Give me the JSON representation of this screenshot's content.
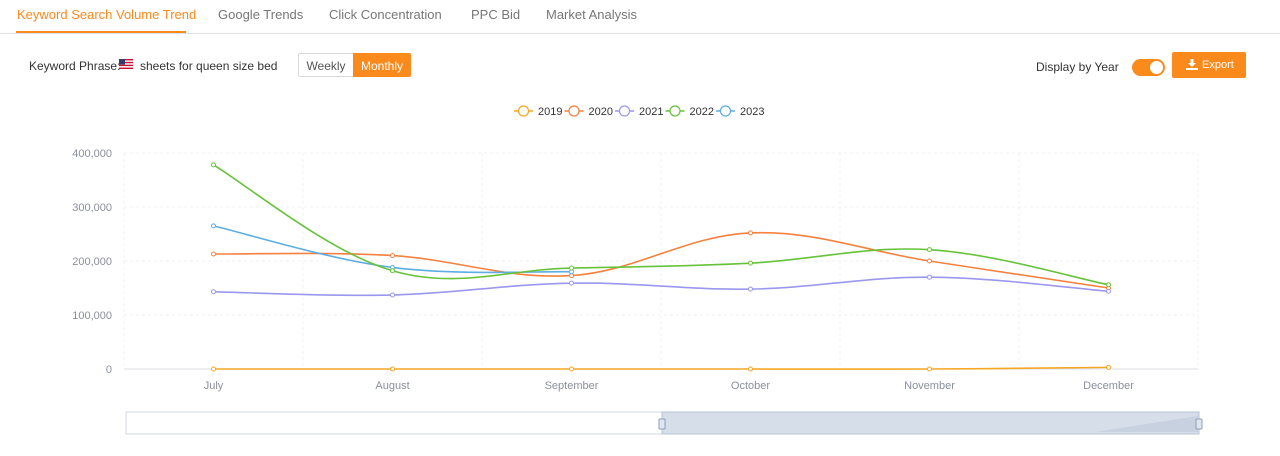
{
  "tabs": [
    {
      "label": "Keyword Search Volume Trend",
      "active": true
    },
    {
      "label": "Google Trends",
      "active": false
    },
    {
      "label": "Click Concentration",
      "active": false
    },
    {
      "label": "PPC Bid",
      "active": false
    },
    {
      "label": "Market Analysis",
      "active": false
    }
  ],
  "keyword": {
    "label": "Keyword Phrase:",
    "flag": "us-flag-icon",
    "value": "sheets for queen size bed"
  },
  "granularity": {
    "options": [
      "Weekly",
      "Monthly"
    ],
    "selected": "Monthly"
  },
  "display_by_year": {
    "label": "Display by Year",
    "enabled": true
  },
  "export": {
    "label": "Export",
    "icon": "download-icon"
  },
  "colors": {
    "accent": "#fb8a1d"
  },
  "chart_data": {
    "type": "line",
    "categories": [
      "July",
      "August",
      "September",
      "October",
      "November",
      "December"
    ],
    "ylim": [
      0,
      400000
    ],
    "yticks": [
      0,
      100000,
      200000,
      300000,
      400000
    ],
    "ytick_labels": [
      "0",
      "100,000",
      "200,000",
      "300,000",
      "400,000"
    ],
    "grid": true,
    "legend_position": "top-center",
    "series": [
      {
        "name": "2019",
        "color": "#f5a623",
        "values": [
          0,
          0,
          0,
          0,
          0,
          3000
        ]
      },
      {
        "name": "2020",
        "color": "#f5813f",
        "values": [
          213000,
          210000,
          173000,
          252000,
          200000,
          150000
        ]
      },
      {
        "name": "2021",
        "color": "#9b97ee",
        "values": [
          143000,
          137000,
          159000,
          148000,
          170000,
          144000
        ]
      },
      {
        "name": "2022",
        "color": "#67c23a",
        "values": [
          378000,
          182000,
          187000,
          196000,
          221000,
          156000
        ]
      },
      {
        "name": "2023",
        "color": "#5dade2",
        "values": [
          265000,
          188000,
          180000,
          null,
          null,
          null
        ]
      }
    ]
  }
}
